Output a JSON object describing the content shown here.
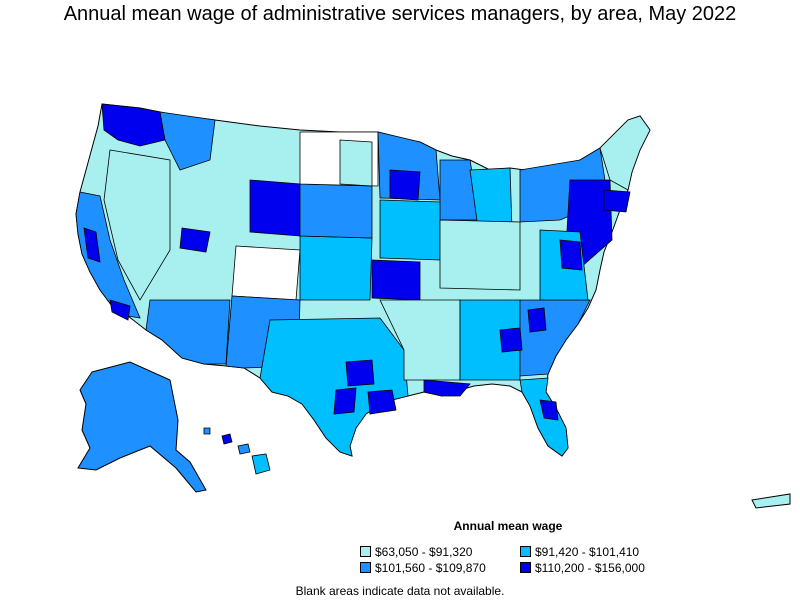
{
  "title": "Annual mean wage of administrative services managers, by area, May 2022",
  "colors": {
    "tier1": "#a8f0f0",
    "tier2": "#00bfff",
    "tier3": "#1e90ff",
    "tier4": "#0000ee",
    "blank": "#ffffff",
    "border": "#000000"
  },
  "legend": {
    "title": "Annual mean wage",
    "items": [
      {
        "label": "$63,050 - $91,320",
        "tier": "tier1"
      },
      {
        "label": "$91,420 - $101,410",
        "tier": "tier2"
      },
      {
        "label": "$101,560 - $109,870",
        "tier": "tier3"
      },
      {
        "label": "$110,200 - $156,000",
        "tier": "tier4"
      }
    ]
  },
  "note": "Blank areas indicate data not available."
}
